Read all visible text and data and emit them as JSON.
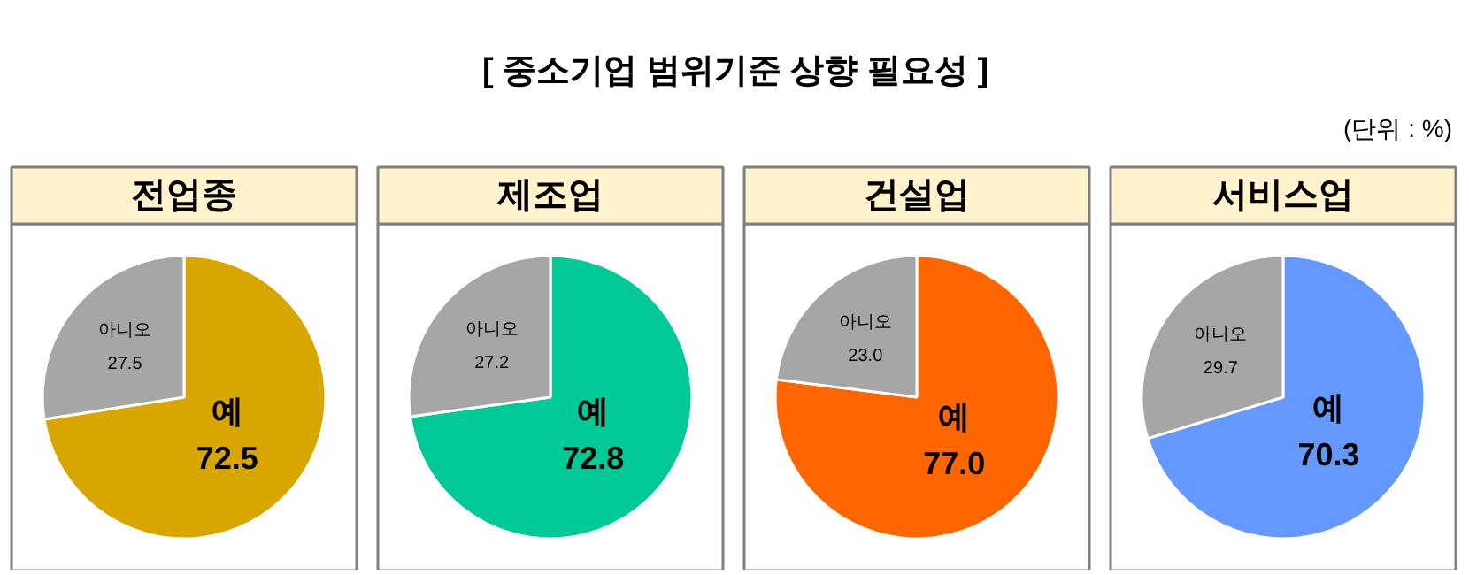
{
  "chart_data": [
    {
      "type": "other",
      "title": "[ 중소기업 범위기준 상향 필요성 ]",
      "annotations": [
        "(단위 : %)"
      ]
    },
    {
      "type": "pie",
      "title": "전업종",
      "categories": [
        "예",
        "아니오"
      ],
      "values": [
        72.5,
        27.5
      ],
      "value_labels": [
        "72.5",
        "27.5"
      ],
      "colors": [
        "#d9a600",
        "#a6a6a6"
      ]
    },
    {
      "type": "pie",
      "title": "제조업",
      "categories": [
        "예",
        "아니오"
      ],
      "values": [
        72.8,
        27.2
      ],
      "value_labels": [
        "72.8",
        "27.2"
      ],
      "colors": [
        "#00c896",
        "#a6a6a6"
      ]
    },
    {
      "type": "pie",
      "title": "건설업",
      "categories": [
        "예",
        "아니오"
      ],
      "values": [
        77.0,
        23.0
      ],
      "value_labels": [
        "77.0",
        "23.0"
      ],
      "colors": [
        "#ff6600",
        "#a6a6a6"
      ]
    },
    {
      "type": "pie",
      "title": "서비스업",
      "categories": [
        "예",
        "아니오"
      ],
      "values": [
        70.3,
        29.7
      ],
      "value_labels": [
        "70.3",
        "29.7"
      ],
      "colors": [
        "#6699ff",
        "#a6a6a6"
      ]
    }
  ]
}
